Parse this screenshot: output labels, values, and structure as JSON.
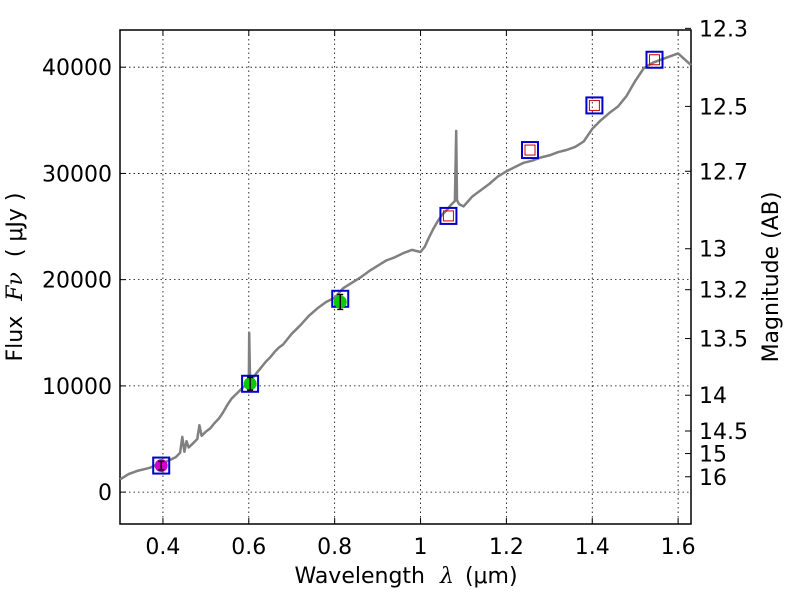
{
  "chart_data": {
    "type": "line",
    "xlabel_text": "Wavelength",
    "xlabel_symbol": "λ",
    "xlabel_units": "(μm)",
    "ylabel_text": "Flux",
    "ylabel_symbol": "Fν",
    "ylabel_units": "( μJy )",
    "y2label": "Magnitude (AB)",
    "xlim": [
      0.3,
      1.63
    ],
    "ylim": [
      -3000,
      43500
    ],
    "x_ticks": [
      0.4,
      0.6,
      0.8,
      1.0,
      1.2,
      1.4,
      1.6
    ],
    "x_tick_labels": [
      "0.4",
      "0.6",
      "0.8",
      "1",
      "1.2",
      "1.4",
      "1.6"
    ],
    "y_ticks": [
      0,
      10000,
      20000,
      30000,
      40000
    ],
    "y_tick_labels": [
      "0",
      "10000",
      "20000",
      "30000",
      "40000"
    ],
    "mag_ticks": [
      12.3,
      12.5,
      12.7,
      13,
      13.2,
      13.5,
      14,
      14.5,
      15,
      16
    ],
    "mag_tick_labels": [
      "12.3",
      "12.5",
      "12.7",
      "13",
      "13.2",
      "13.5",
      "14",
      "14.5",
      "15",
      "16"
    ],
    "grid": true,
    "series": [
      {
        "name": "spectrum",
        "color": "#808080",
        "x": [
          0.3,
          0.32,
          0.34,
          0.36,
          0.37,
          0.38,
          0.39,
          0.4,
          0.41,
          0.42,
          0.43,
          0.44,
          0.445,
          0.45,
          0.455,
          0.46,
          0.47,
          0.48,
          0.485,
          0.49,
          0.5,
          0.51,
          0.52,
          0.53,
          0.54,
          0.55,
          0.56,
          0.57,
          0.58,
          0.59,
          0.6,
          0.601,
          0.603,
          0.605,
          0.607,
          0.61,
          0.62,
          0.63,
          0.64,
          0.65,
          0.66,
          0.67,
          0.68,
          0.69,
          0.7,
          0.72,
          0.74,
          0.76,
          0.78,
          0.8,
          0.82,
          0.84,
          0.86,
          0.88,
          0.9,
          0.92,
          0.94,
          0.96,
          0.98,
          1.0,
          1.01,
          1.02,
          1.03,
          1.04,
          1.05,
          1.06,
          1.07,
          1.08,
          1.083,
          1.085,
          1.087,
          1.09,
          1.1,
          1.12,
          1.14,
          1.16,
          1.18,
          1.2,
          1.22,
          1.24,
          1.26,
          1.28,
          1.3,
          1.32,
          1.34,
          1.36,
          1.38,
          1.4,
          1.42,
          1.44,
          1.46,
          1.48,
          1.5,
          1.52,
          1.54,
          1.56,
          1.58,
          1.6,
          1.63
        ],
        "values": [
          1200,
          1700,
          2000,
          2200,
          2300,
          2500,
          2600,
          2700,
          2900,
          3100,
          3300,
          3700,
          5200,
          3800,
          4800,
          4200,
          4600,
          5000,
          6300,
          5300,
          5700,
          6000,
          6500,
          6900,
          7500,
          8200,
          8800,
          9200,
          9600,
          10000,
          10100,
          15000,
          10300,
          10200,
          10400,
          10800,
          11300,
          11800,
          12300,
          12700,
          13200,
          13600,
          13900,
          14400,
          14900,
          15700,
          16600,
          17300,
          17900,
          18300,
          19200,
          19700,
          20200,
          20800,
          21300,
          21800,
          22100,
          22500,
          22800,
          22600,
          23100,
          24000,
          24800,
          25500,
          26100,
          26500,
          27000,
          27400,
          34000,
          27500,
          27300,
          27100,
          26900,
          27800,
          28400,
          29000,
          29700,
          30200,
          30600,
          31000,
          31200,
          31500,
          31700,
          32000,
          32200,
          32500,
          33000,
          34200,
          35000,
          35700,
          36300,
          37300,
          38700,
          39900,
          40400,
          40700,
          41000,
          41300,
          40200
        ]
      }
    ],
    "markers": {
      "open_squares": [
        {
          "x": 0.396,
          "y": 2500,
          "color": "#0000cc"
        },
        {
          "x": 0.603,
          "y": 10200,
          "color": "#0000cc"
        },
        {
          "x": 0.813,
          "y": 18200,
          "color": "#0000cc"
        },
        {
          "x": 1.065,
          "y": 26000,
          "color": "#0000cc"
        },
        {
          "x": 1.255,
          "y": 32200,
          "color": "#0000cc"
        },
        {
          "x": 1.405,
          "y": 36400,
          "color": "#0000cc"
        },
        {
          "x": 1.545,
          "y": 40700,
          "color": "#0000cc"
        }
      ],
      "inner_squares": [
        {
          "x": 1.065,
          "y": 26000,
          "color": "#cc0000"
        },
        {
          "x": 1.255,
          "y": 32200,
          "color": "#cc0000"
        },
        {
          "x": 1.405,
          "y": 36400,
          "color": "#cc0000"
        },
        {
          "x": 1.545,
          "y": 40700,
          "color": "#cc0000"
        }
      ],
      "filled_points": [
        {
          "x": 0.396,
          "y": 2500,
          "color": "#cc00cc",
          "err": 400
        },
        {
          "x": 0.603,
          "y": 10200,
          "color": "#00cc00",
          "err": 600
        },
        {
          "x": 0.813,
          "y": 17900,
          "color": "#00cc00",
          "err": 700
        }
      ]
    }
  }
}
